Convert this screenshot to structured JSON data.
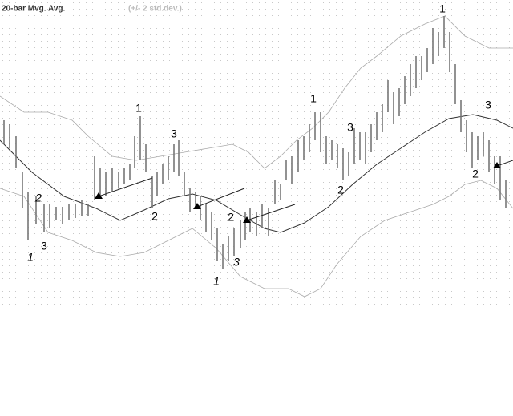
{
  "chart_data": {
    "type": "hilo",
    "title": "20-bar Mvg. Avg.",
    "subtitle": "(+/- 2 std.dev.)",
    "xlim": [
      0,
      640
    ],
    "ylim": [
      0,
      380
    ],
    "bar_color": "#777777",
    "x": [
      5,
      12,
      20,
      28,
      35,
      45,
      55,
      62,
      70,
      78,
      86,
      94,
      102,
      110,
      118,
      125,
      132,
      140,
      148,
      155,
      162,
      168,
      175,
      182,
      190,
      196,
      203,
      210,
      217,
      223,
      230,
      237,
      244,
      250,
      257,
      264,
      271,
      278,
      285,
      292,
      300,
      306,
      312,
      320,
      327,
      335,
      343,
      350,
      357,
      364,
      372,
      379,
      386,
      393,
      400,
      407,
      414,
      421,
      428,
      435,
      442,
      449,
      456,
      463,
      470,
      477,
      484,
      491,
      498,
      505,
      512,
      519,
      526,
      533,
      540,
      547,
      554,
      561,
      568,
      575,
      582,
      589,
      596,
      603,
      610,
      617,
      624,
      631
    ],
    "high": [
      230,
      225,
      210,
      165,
      140,
      135,
      125,
      125,
      122,
      122,
      125,
      125,
      130,
      125,
      185,
      170,
      165,
      170,
      165,
      170,
      175,
      210,
      235,
      200,
      160,
      165,
      175,
      185,
      200,
      205,
      165,
      145,
      140,
      135,
      125,
      115,
      95,
      75,
      85,
      95,
      105,
      115,
      120,
      115,
      125,
      120,
      155,
      150,
      180,
      185,
      205,
      210,
      225,
      240,
      240,
      210,
      205,
      200,
      195,
      190,
      220,
      215,
      215,
      225,
      240,
      250,
      280,
      265,
      270,
      285,
      300,
      310,
      310,
      320,
      345,
      340,
      360,
      340,
      300,
      255,
      230,
      215,
      210,
      215,
      205,
      185,
      185,
      155
    ],
    "low": [
      200,
      195,
      170,
      120,
      80,
      100,
      90,
      95,
      105,
      100,
      105,
      108,
      110,
      110,
      130,
      135,
      135,
      140,
      145,
      150,
      155,
      170,
      180,
      165,
      120,
      135,
      150,
      155,
      165,
      160,
      135,
      115,
      120,
      105,
      90,
      80,
      55,
      45,
      55,
      60,
      70,
      80,
      90,
      85,
      95,
      85,
      125,
      130,
      155,
      150,
      165,
      180,
      190,
      205,
      190,
      175,
      180,
      170,
      155,
      160,
      175,
      180,
      175,
      190,
      205,
      215,
      240,
      225,
      235,
      250,
      260,
      270,
      280,
      290,
      300,
      310,
      320,
      290,
      250,
      215,
      190,
      170,
      180,
      185,
      165,
      150,
      130,
      120
    ],
    "bands": {
      "upper": {
        "color": "#aaaaaa",
        "x": [
          0,
          30,
          60,
          90,
          110,
          140,
          170,
          200,
          230,
          260,
          290,
          310,
          330,
          350,
          370,
          390,
          410,
          430,
          450,
          470,
          500,
          530,
          555,
          580,
          610,
          640
        ],
        "values": [
          260,
          240,
          240,
          230,
          210,
          185,
          180,
          185,
          190,
          195,
          200,
          190,
          170,
          185,
          205,
          220,
          240,
          270,
          295,
          310,
          335,
          350,
          360,
          335,
          320,
          320
        ]
      },
      "middle": {
        "color": "#333333",
        "x": [
          0,
          40,
          80,
          120,
          150,
          180,
          210,
          240,
          270,
          300,
          330,
          350,
          380,
          410,
          440,
          470,
          500,
          530,
          560,
          590,
          620,
          640
        ],
        "values": [
          205,
          165,
          135,
          120,
          105,
          118,
          132,
          138,
          130,
          112,
          95,
          90,
          102,
          122,
          150,
          175,
          195,
          215,
          232,
          237,
          230,
          220
        ]
      },
      "lower": {
        "color": "#aaaaaa",
        "x": [
          0,
          30,
          60,
          90,
          120,
          150,
          180,
          210,
          240,
          270,
          300,
          330,
          360,
          380,
          400,
          420,
          450,
          480,
          510,
          540,
          560,
          580,
          600,
          620,
          640
        ],
        "values": [
          145,
          135,
          90,
          80,
          65,
          60,
          65,
          80,
          95,
          70,
          35,
          20,
          20,
          10,
          20,
          50,
          85,
          105,
          115,
          125,
          135,
          150,
          155,
          145,
          120
        ]
      }
    },
    "trendlines": [
      {
        "x": [
          123,
          190
        ],
        "values": [
          135,
          158
        ]
      },
      {
        "x": [
          246,
          305
        ],
        "values": [
          122,
          145
        ]
      },
      {
        "x": [
          308,
          368
        ],
        "values": [
          105,
          125
        ]
      },
      {
        "x": [
          620,
          640
        ],
        "values": [
          173,
          180
        ]
      }
    ],
    "annotations": [
      "1",
      "3",
      "2",
      "1",
      "3",
      "2",
      "2",
      "3",
      "1",
      "1",
      "3",
      "2",
      "1",
      "3",
      "2"
    ]
  }
}
